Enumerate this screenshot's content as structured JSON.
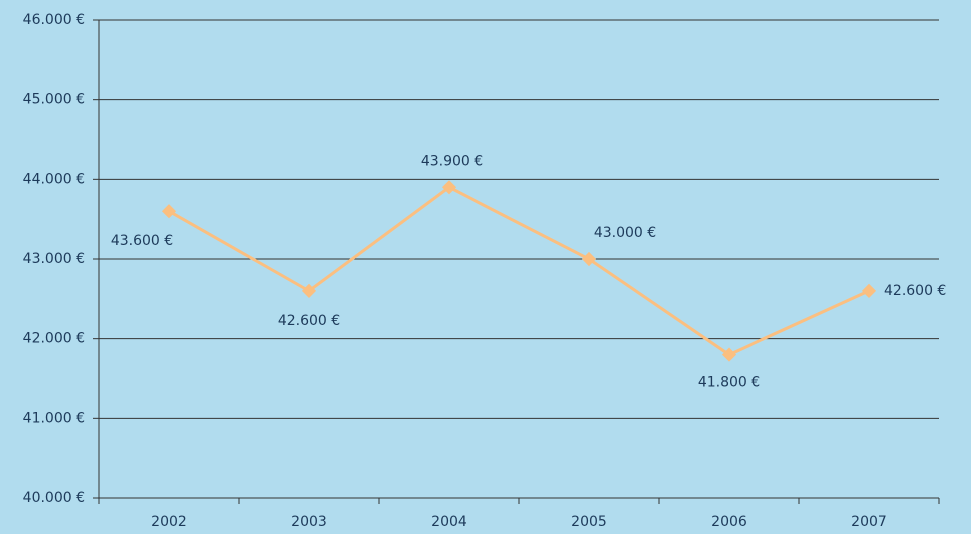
{
  "chart_data": {
    "type": "line",
    "categories": [
      "2002",
      "2003",
      "2004",
      "2005",
      "2006",
      "2007"
    ],
    "series": [
      {
        "name": "Series 1",
        "color": "#fbbf80",
        "values": [
          43600,
          42600,
          43900,
          43000,
          41800,
          42600
        ],
        "value_labels": [
          "43.600 €",
          "42.600 €",
          "43.900 €",
          "43.000 €",
          "41.800 €",
          "42.600 €"
        ]
      }
    ],
    "ylim": [
      40000,
      46000
    ],
    "yticks": [
      {
        "value": 40000,
        "label": "40.000 €"
      },
      {
        "value": 41000,
        "label": "41.000 €"
      },
      {
        "value": 42000,
        "label": "42.000 €"
      },
      {
        "value": 43000,
        "label": "43.000 €"
      },
      {
        "value": 44000,
        "label": "44.000 €"
      },
      {
        "value": 45000,
        "label": "45.000 €"
      },
      {
        "value": 46000,
        "label": "46.000 €"
      }
    ],
    "grid": true
  }
}
